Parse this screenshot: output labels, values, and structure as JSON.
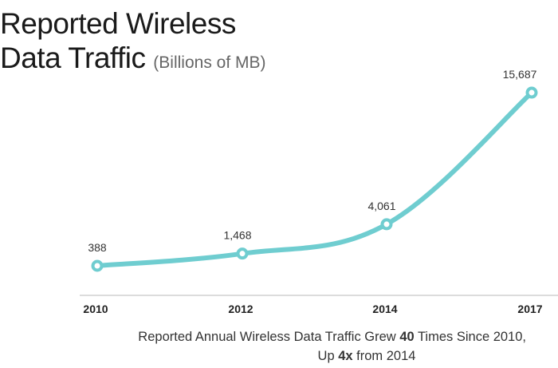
{
  "chart_data": {
    "type": "line",
    "title": "Reported Wireless",
    "title_line2": "Data Traffic",
    "subtitle": "(Billions of MB)",
    "categories": [
      "2010",
      "2012",
      "2014",
      "2017"
    ],
    "values": [
      388,
      1468,
      4061,
      15687
    ],
    "data_labels": [
      "388",
      "1,468",
      "4,061",
      "15,687"
    ],
    "line_color": "#6fcdd0",
    "axis_color": "#d0d0d0",
    "grid": false,
    "legend": "none"
  },
  "caption": {
    "line1_pre": "Reported Annual Wireless Data Traffic Grew ",
    "line1_bold": "40",
    "line1_post": " Times Since 2010,",
    "line2_pre": "Up ",
    "line2_bold": "4x",
    "line2_post": " from 2014"
  }
}
